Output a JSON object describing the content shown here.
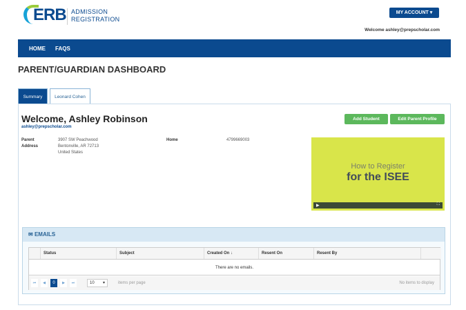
{
  "header": {
    "logo_text": "ERB",
    "logo_sub1": "ADMISSION",
    "logo_sub2": "REGISTRATION",
    "account_button": "MY ACCOUNT ▾",
    "welcome": "Welcome ashley@prepscholar.com"
  },
  "nav": {
    "items": [
      "HOME",
      "FAQS"
    ]
  },
  "page_title": "PARENT/GUARDIAN DASHBOARD",
  "tabs": [
    {
      "label": "Summary",
      "active": true
    },
    {
      "label": "Leonard Cohen",
      "active": false
    }
  ],
  "profile": {
    "welcome": "Welcome, Ashley Robinson",
    "email": "ashley@prepscholar.com",
    "address_label": "Parent Address",
    "address_lines": [
      "3907 SW Peachwood",
      "Bentonville, AR 72713",
      "United States"
    ],
    "phone_label": "Home",
    "phone": "4799669003"
  },
  "buttons": {
    "add_student": "Add Student",
    "edit_profile": "Edit Parent Profile"
  },
  "video": {
    "line1": "How to Register",
    "line2": "for the ISEE"
  },
  "emails": {
    "title": "EMAILS",
    "columns": [
      "Status",
      "Subject",
      "Created On ↓",
      "Resent On",
      "Resent By"
    ],
    "empty": "There are no emails.",
    "page": "0",
    "page_size": "10",
    "items_per_page": "items per page",
    "no_items": "No items to display"
  },
  "colors": {
    "brand": "#0b4a8f",
    "green": "#5cb85c"
  }
}
